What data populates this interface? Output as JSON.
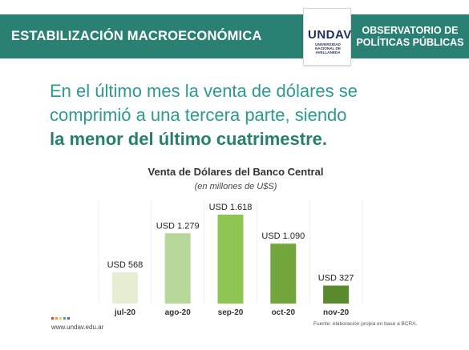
{
  "header": {
    "section_title": "ESTABILIZACIÓN MACROECONÓMICA",
    "logo_text": "UNDAV",
    "logo_subtitle_lines": [
      "UNIVERSIDAD",
      "NACIONAL DE",
      "AVELLANEDA"
    ],
    "org_line1": "OBSERVATORIO DE",
    "org_line2": "POLÍTICAS PÚBLICAS"
  },
  "headline": {
    "line1": "En el último mes la venta de dólares se",
    "line2": "comprimió a una tercera parte, siendo",
    "line3_bold": "la menor del último cuatrimestre."
  },
  "chart_data": {
    "type": "bar",
    "title": "Venta de Dólares del Banco Central",
    "subtitle": "(en millones de U$S)",
    "categories": [
      "jul-20",
      "ago-20",
      "sep-20",
      "oct-20",
      "nov-20"
    ],
    "values": [
      568,
      1279,
      1618,
      1090,
      327
    ],
    "data_labels": [
      "USD 568",
      "USD 1.279",
      "USD 1.618",
      "USD 1.090",
      "USD 327"
    ],
    "bar_colors": [
      "#e5eed3",
      "#b8d79a",
      "#8fc553",
      "#72a53c",
      "#5a8a2e"
    ],
    "ylim": [
      0,
      1618
    ],
    "grid": "vertical",
    "xlabel": "",
    "ylabel": ""
  },
  "footer": {
    "url": "www.undav.edu.ar",
    "source": "Fuente: elaboración propia en base a BCRA."
  },
  "colors": {
    "header_band": "#2a8073",
    "headline_teal": "#2a9a93",
    "headline_bold": "#26806f",
    "brand_dots": [
      "#e43d3d",
      "#f29a2e",
      "#f4d23a",
      "#3aa0d9",
      "#7a4fa3"
    ]
  }
}
